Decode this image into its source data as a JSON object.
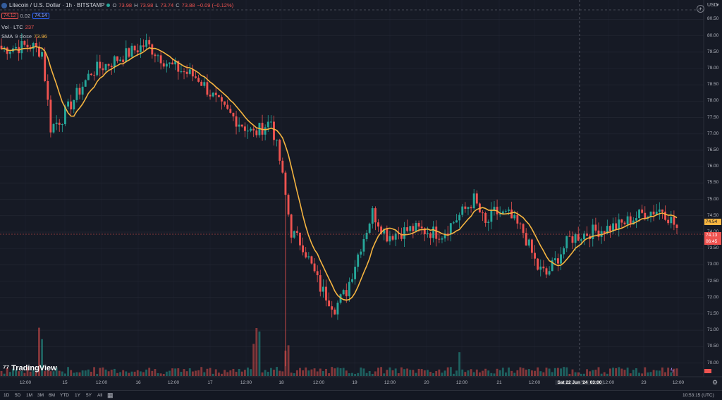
{
  "header": {
    "title": "Litecoin / U.S. Dollar · 1h · BITSTAMP",
    "o_label": "O",
    "o": "73.98",
    "h_label": "H",
    "h": "73.98",
    "l_label": "L",
    "l": "73.74",
    "c_label": "C",
    "c": "73.88",
    "change": "−0.09 (−0.12%)",
    "bid": "74.12",
    "spread": "0.02",
    "ask": "74.14",
    "vol_label": "Vol · LTC",
    "vol_value": "237",
    "sma_label": "SMA",
    "sma_params": "9 close",
    "sma_value": "73.96",
    "currency": "USD"
  },
  "price_tags": {
    "sma": "74.54",
    "last": "74.13",
    "countdown": "06:45"
  },
  "time_info": {
    "crosshair_label": "Sat 22 Jun '24",
    "crosshair_time": "03:00",
    "clock": "10:53:15 (UTC)"
  },
  "toolbar": {
    "ranges": [
      "1D",
      "5D",
      "1M",
      "3M",
      "6M",
      "YTD",
      "1Y",
      "5Y",
      "All"
    ]
  },
  "branding": {
    "logo_text": "TradingView"
  },
  "colors": {
    "up": "#26a69a",
    "down": "#ef5350",
    "sma": "#f5b440",
    "background": "#161a25",
    "grid": "#232733"
  },
  "chart_data": {
    "type": "candlestick",
    "symbol": "Litecoin / U.S. Dollar",
    "interval": "1h",
    "exchange": "BITSTAMP",
    "ylim": [
      69.75,
      80.9
    ],
    "y_ticks": [
      "80.50",
      "80.00",
      "79.50",
      "79.00",
      "78.50",
      "78.00",
      "77.50",
      "77.00",
      "76.50",
      "76.00",
      "75.50",
      "75.00",
      "74.50",
      "74.00",
      "73.50",
      "73.00",
      "72.50",
      "72.00",
      "71.50",
      "71.00",
      "70.50",
      "70.00"
    ],
    "x_ticks": [
      "12:00",
      "15",
      "12:00",
      "16",
      "12:00",
      "17",
      "12:00",
      "18",
      "12:00",
      "19",
      "12:00",
      "20",
      "12:00",
      "21",
      "12:00",
      "Sat 22 Jun '24",
      "03:00",
      "12:00",
      "23",
      "12:00"
    ],
    "close_keypoints": [
      {
        "t": 0,
        "close": 79.6
      },
      {
        "t": 10,
        "close": 79.7
      },
      {
        "t": 14,
        "close": 79.5
      },
      {
        "t": 17,
        "close": 77.2
      },
      {
        "t": 21,
        "close": 77.5
      },
      {
        "t": 31,
        "close": 78.9
      },
      {
        "t": 38,
        "close": 79.2
      },
      {
        "t": 50,
        "close": 79.75
      },
      {
        "t": 58,
        "close": 79.1
      },
      {
        "t": 68,
        "close": 78.7
      },
      {
        "t": 76,
        "close": 77.8
      },
      {
        "t": 87,
        "close": 77.0
      },
      {
        "t": 93,
        "close": 77.4
      },
      {
        "t": 96,
        "close": 76.2
      },
      {
        "t": 100,
        "close": 74.0
      },
      {
        "t": 104,
        "close": 73.6
      },
      {
        "t": 110,
        "close": 72.3
      },
      {
        "t": 115,
        "close": 71.7
      },
      {
        "t": 119,
        "close": 72.2
      },
      {
        "t": 124,
        "close": 73.6
      },
      {
        "t": 128,
        "close": 74.6
      },
      {
        "t": 133,
        "close": 73.9
      },
      {
        "t": 142,
        "close": 74.1
      },
      {
        "t": 152,
        "close": 73.95
      },
      {
        "t": 159,
        "close": 74.6
      },
      {
        "t": 163,
        "close": 75.0
      },
      {
        "t": 167,
        "close": 74.2
      },
      {
        "t": 170,
        "close": 74.6
      },
      {
        "t": 175,
        "close": 74.5
      },
      {
        "t": 180,
        "close": 74.0
      },
      {
        "t": 185,
        "close": 72.9
      },
      {
        "t": 188,
        "close": 72.7
      },
      {
        "t": 191,
        "close": 73.1
      },
      {
        "t": 196,
        "close": 73.8
      },
      {
        "t": 203,
        "close": 74.0
      },
      {
        "t": 213,
        "close": 74.2
      },
      {
        "t": 222,
        "close": 74.6
      },
      {
        "t": 228,
        "close": 74.7
      },
      {
        "t": 233,
        "close": 74.13
      }
    ],
    "last_price": 74.13,
    "sma_last": 74.54,
    "series": [
      {
        "name": "SMA 9 close",
        "type": "line"
      },
      {
        "name": "Vol · LTC",
        "type": "bar"
      }
    ]
  }
}
